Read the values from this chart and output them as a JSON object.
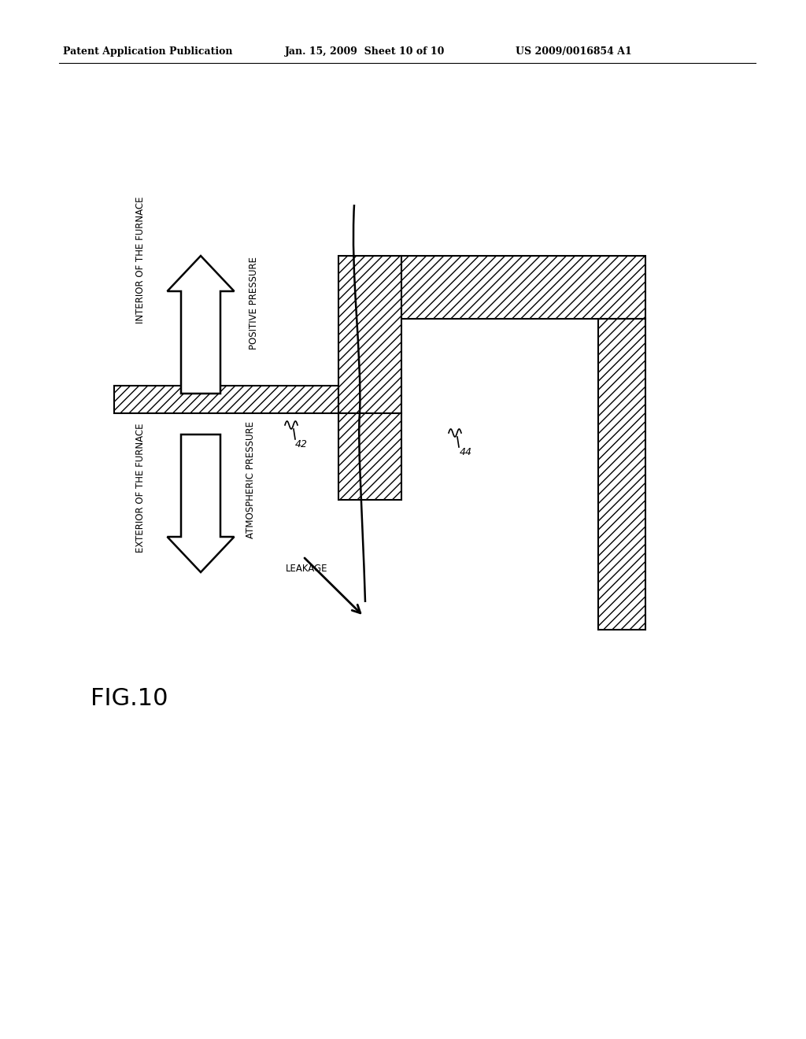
{
  "header_left": "Patent Application Publication",
  "header_mid": "Jan. 15, 2009  Sheet 10 of 10",
  "header_right": "US 2009/0016854 A1",
  "fig_label": "FIG.10",
  "label_42": "42",
  "label_44": "44",
  "label_interior": "INTERIOR OF THE FURNACE",
  "label_exterior": "EXTERIOR OF THE FURNACE",
  "label_positive": "POSITIVE PRESSURE",
  "label_atmospheric": "ATMOSPHERIC PRESSURE",
  "label_leakage": "LEAKAGE",
  "bg_color": "#ffffff"
}
